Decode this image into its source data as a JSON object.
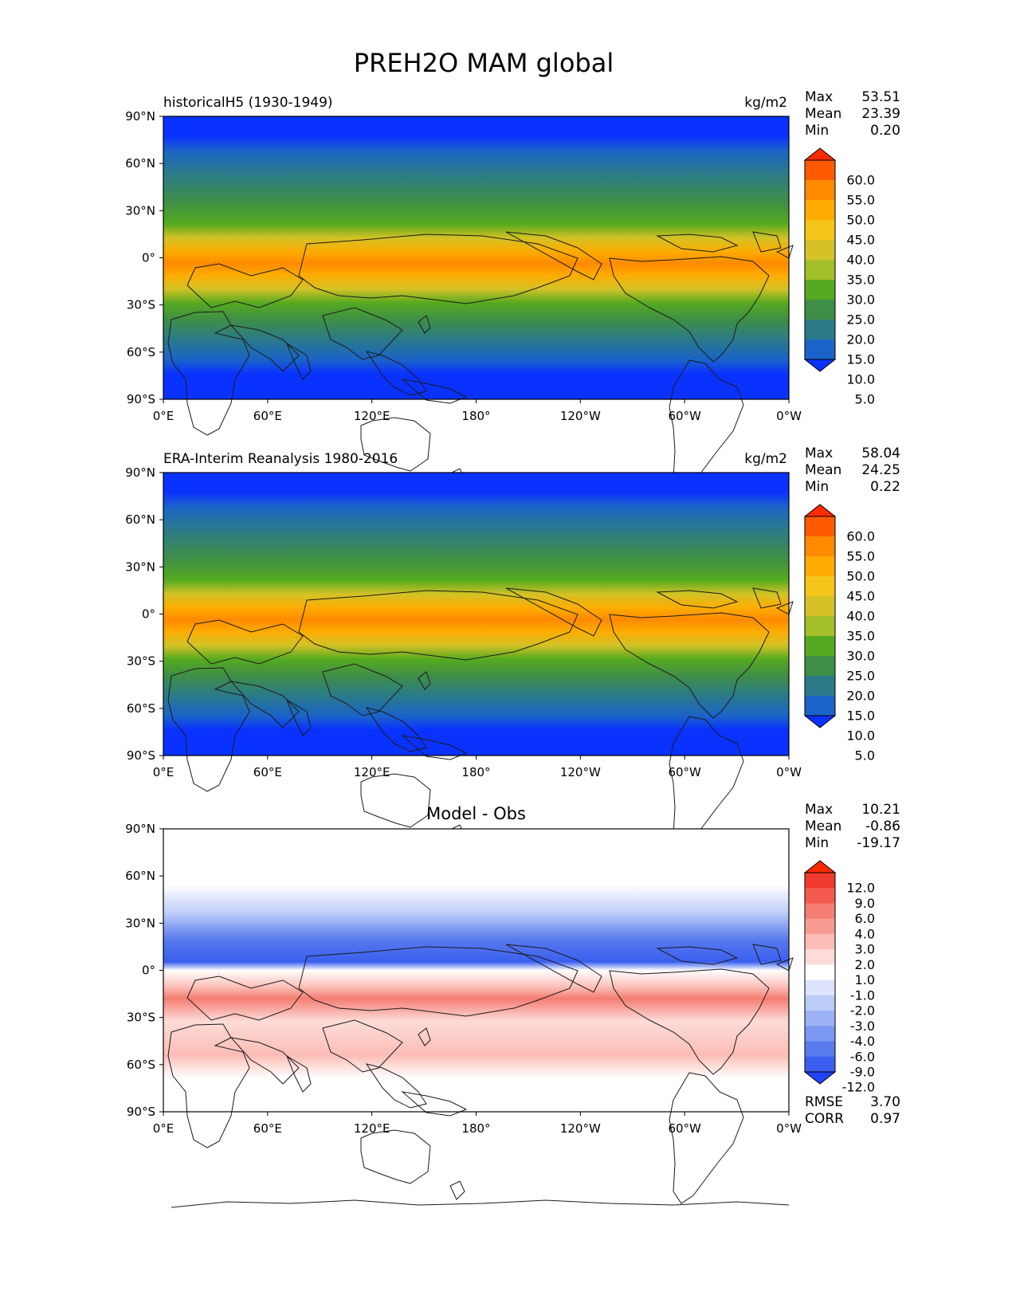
{
  "title": "PREH2O MAM global",
  "x_ticks": [
    "0°E",
    "60°E",
    "120°E",
    "180°",
    "120°W",
    "60°W",
    "0°W"
  ],
  "y_ticks": [
    "90°N",
    "60°N",
    "30°N",
    "0°",
    "30°S",
    "60°S",
    "90°S"
  ],
  "panels": [
    {
      "id": "model",
      "left_title": "historicalH5 (1930-1949)",
      "center_title": "",
      "units": "kg/m2",
      "stats": [
        {
          "label": "Max",
          "value": "53.51"
        },
        {
          "label": "Mean",
          "value": "23.39"
        },
        {
          "label": "Min",
          "value": "0.20"
        }
      ],
      "colorbar": {
        "labels": [
          "60.0",
          "55.0",
          "50.0",
          "45.0",
          "40.0",
          "35.0",
          "30.0",
          "25.0",
          "20.0",
          "15.0",
          "10.0",
          "5.0"
        ],
        "colors": [
          "#ff2a00",
          "#ff5a00",
          "#ff8a00",
          "#ffab00",
          "#f5c51a",
          "#d4c226",
          "#a3bf2a",
          "#55aa1f",
          "#3e8e48",
          "#2a7a8a",
          "#1b63c8",
          "#0a32ff"
        ]
      }
    },
    {
      "id": "obs",
      "left_title": "ERA-Interim Reanalysis 1980-2016",
      "center_title": "",
      "units": "kg/m2",
      "stats": [
        {
          "label": "Max",
          "value": "58.04"
        },
        {
          "label": "Mean",
          "value": "24.25"
        },
        {
          "label": "Min",
          "value": "0.22"
        }
      ],
      "colorbar": {
        "labels": [
          "60.0",
          "55.0",
          "50.0",
          "45.0",
          "40.0",
          "35.0",
          "30.0",
          "25.0",
          "20.0",
          "15.0",
          "10.0",
          "5.0"
        ],
        "colors": [
          "#ff2a00",
          "#ff5a00",
          "#ff8a00",
          "#ffab00",
          "#f5c51a",
          "#d4c226",
          "#a3bf2a",
          "#55aa1f",
          "#3e8e48",
          "#2a7a8a",
          "#1b63c8",
          "#0a32ff"
        ]
      }
    },
    {
      "id": "diff",
      "left_title": "",
      "center_title": "Model - Obs",
      "units": "",
      "stats": [
        {
          "label": "Max",
          "value": "10.21"
        },
        {
          "label": "Mean",
          "value": "-0.86"
        },
        {
          "label": "Min",
          "value": "-19.17"
        }
      ],
      "extra_stats": [
        {
          "label": "RMSE",
          "value": "3.70"
        },
        {
          "label": "CORR",
          "value": "0.97"
        }
      ],
      "colorbar": {
        "labels": [
          "12.0",
          "9.0",
          "6.0",
          "4.0",
          "3.0",
          "2.0",
          "1.0",
          "-1.0",
          "-2.0",
          "-3.0",
          "-4.0",
          "-6.0",
          "-9.0",
          "-12.0"
        ],
        "colors": [
          "#ff2a00",
          "#f03a2e",
          "#f45a4e",
          "#f57d72",
          "#f89c92",
          "#fbbdb5",
          "#fddcd8",
          "#ffffff",
          "#dde3fb",
          "#bccbf8",
          "#9cb2f5",
          "#7a97f1",
          "#587aec",
          "#3a5ff0",
          "#1e44ff"
        ]
      }
    }
  ]
}
